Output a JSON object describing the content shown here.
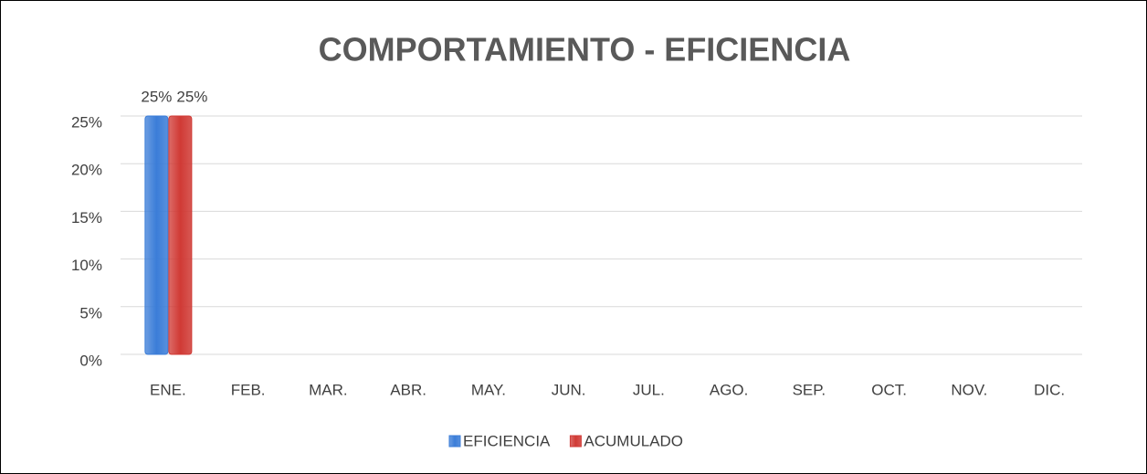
{
  "chart_data": {
    "type": "bar",
    "title": "COMPORTAMIENTO - EFICIENCIA",
    "categories": [
      "ENE.",
      "FEB.",
      "MAR.",
      "ABR.",
      "MAY.",
      "JUN.",
      "JUL.",
      "AGO.",
      "SEP.",
      "OCT.",
      "NOV.",
      "DIC."
    ],
    "series": [
      {
        "name": "EFICIENCIA",
        "color": "#3b7dd8",
        "values": [
          25,
          null,
          null,
          null,
          null,
          null,
          null,
          null,
          null,
          null,
          null,
          null
        ],
        "value_labels": [
          "25%",
          null,
          null,
          null,
          null,
          null,
          null,
          null,
          null,
          null,
          null,
          null
        ]
      },
      {
        "name": "ACUMULADO",
        "color": "#d03a35",
        "values": [
          25,
          null,
          null,
          null,
          null,
          null,
          null,
          null,
          null,
          null,
          null,
          null
        ],
        "value_labels": [
          "25%",
          null,
          null,
          null,
          null,
          null,
          null,
          null,
          null,
          null,
          null,
          null
        ]
      }
    ],
    "ylim": [
      0,
      25
    ],
    "yticks": [
      {
        "value": 0,
        "label": "0%"
      },
      {
        "value": 5,
        "label": "5%"
      },
      {
        "value": 10,
        "label": "10%"
      },
      {
        "value": 15,
        "label": "15%"
      },
      {
        "value": 20,
        "label": "20%"
      },
      {
        "value": 25,
        "label": "25%"
      }
    ],
    "grid": true,
    "legend": "bottom"
  }
}
